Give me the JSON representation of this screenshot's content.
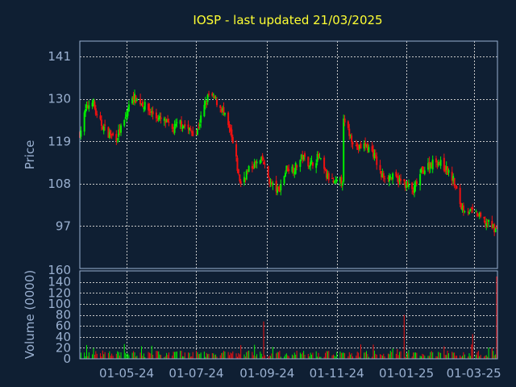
{
  "colors": {
    "background": "#0f1f33",
    "title": "#ffff33",
    "axis_text": "#9ab0d0",
    "frame": "#9ab0d0",
    "grid": "#c8c8c8",
    "up": "#00ee00",
    "down": "#ee1111"
  },
  "chart_data": [
    {
      "type": "candlestick",
      "title": "IOSP - last updated 21/03/2025",
      "ylabel": "Price",
      "ylim": [
        86,
        145
      ],
      "y_ticks": [
        141,
        130,
        119,
        108,
        97
      ],
      "x_ticks": [
        "01-05-24",
        "01-07-24",
        "01-09-24",
        "01-11-24",
        "01-01-25",
        "01-03-25"
      ],
      "grid": true,
      "close_anchors": {
        "dates": [
          "2024-03-21",
          "2024-03-26",
          "2024-04-01",
          "2024-04-05",
          "2024-04-10",
          "2024-04-15",
          "2024-04-22",
          "2024-04-29",
          "2024-05-06",
          "2024-05-09",
          "2024-05-14",
          "2024-05-21",
          "2024-05-28",
          "2024-06-04",
          "2024-06-10",
          "2024-06-17",
          "2024-06-24",
          "2024-07-01",
          "2024-07-08",
          "2024-07-12",
          "2024-07-17",
          "2024-07-24",
          "2024-07-31",
          "2024-08-05",
          "2024-08-07",
          "2024-08-09",
          "2024-08-14",
          "2024-08-21",
          "2024-08-28",
          "2024-09-04",
          "2024-09-11",
          "2024-09-18",
          "2024-09-25",
          "2024-10-02",
          "2024-10-09",
          "2024-10-16",
          "2024-10-23",
          "2024-10-30",
          "2024-11-06",
          "2024-11-07",
          "2024-11-12",
          "2024-11-19",
          "2024-11-26",
          "2024-12-03",
          "2024-12-10",
          "2024-12-17",
          "2024-12-24",
          "2024-12-31",
          "2025-01-07",
          "2025-01-14",
          "2025-01-21",
          "2025-01-28",
          "2025-02-04",
          "2025-02-11",
          "2025-02-18",
          "2025-02-25",
          "2025-03-04",
          "2025-03-11",
          "2025-03-17",
          "2025-03-21"
        ],
        "values": [
          121,
          127,
          130,
          125,
          123,
          121,
          120,
          124,
          131,
          130,
          129,
          127,
          125,
          124,
          122,
          124,
          122,
          121,
          128,
          131,
          130,
          127,
          121,
          114,
          110,
          108,
          111,
          113,
          114,
          108,
          106,
          112,
          112,
          115,
          113,
          115,
          110,
          108,
          109,
          124,
          121,
          117,
          118,
          116,
          110,
          110,
          109,
          108,
          106,
          111,
          113,
          114,
          112,
          109,
          102,
          101,
          100,
          98,
          97,
          96
        ]
      },
      "volume": {
        "ylabel": "Volume (0000)",
        "ylim": [
          0,
          160
        ],
        "y_ticks": [
          140,
          120,
          100,
          80,
          60,
          40,
          20,
          0
        ],
        "top_label": "160",
        "typical_range": [
          3,
          15
        ],
        "spikes": [
          {
            "date": "2024-08-29",
            "value": 68
          },
          {
            "date": "2024-12-30",
            "value": 80
          },
          {
            "date": "2025-02-28",
            "value": 45
          },
          {
            "date": "2025-03-21",
            "value": 150
          }
        ]
      }
    }
  ]
}
